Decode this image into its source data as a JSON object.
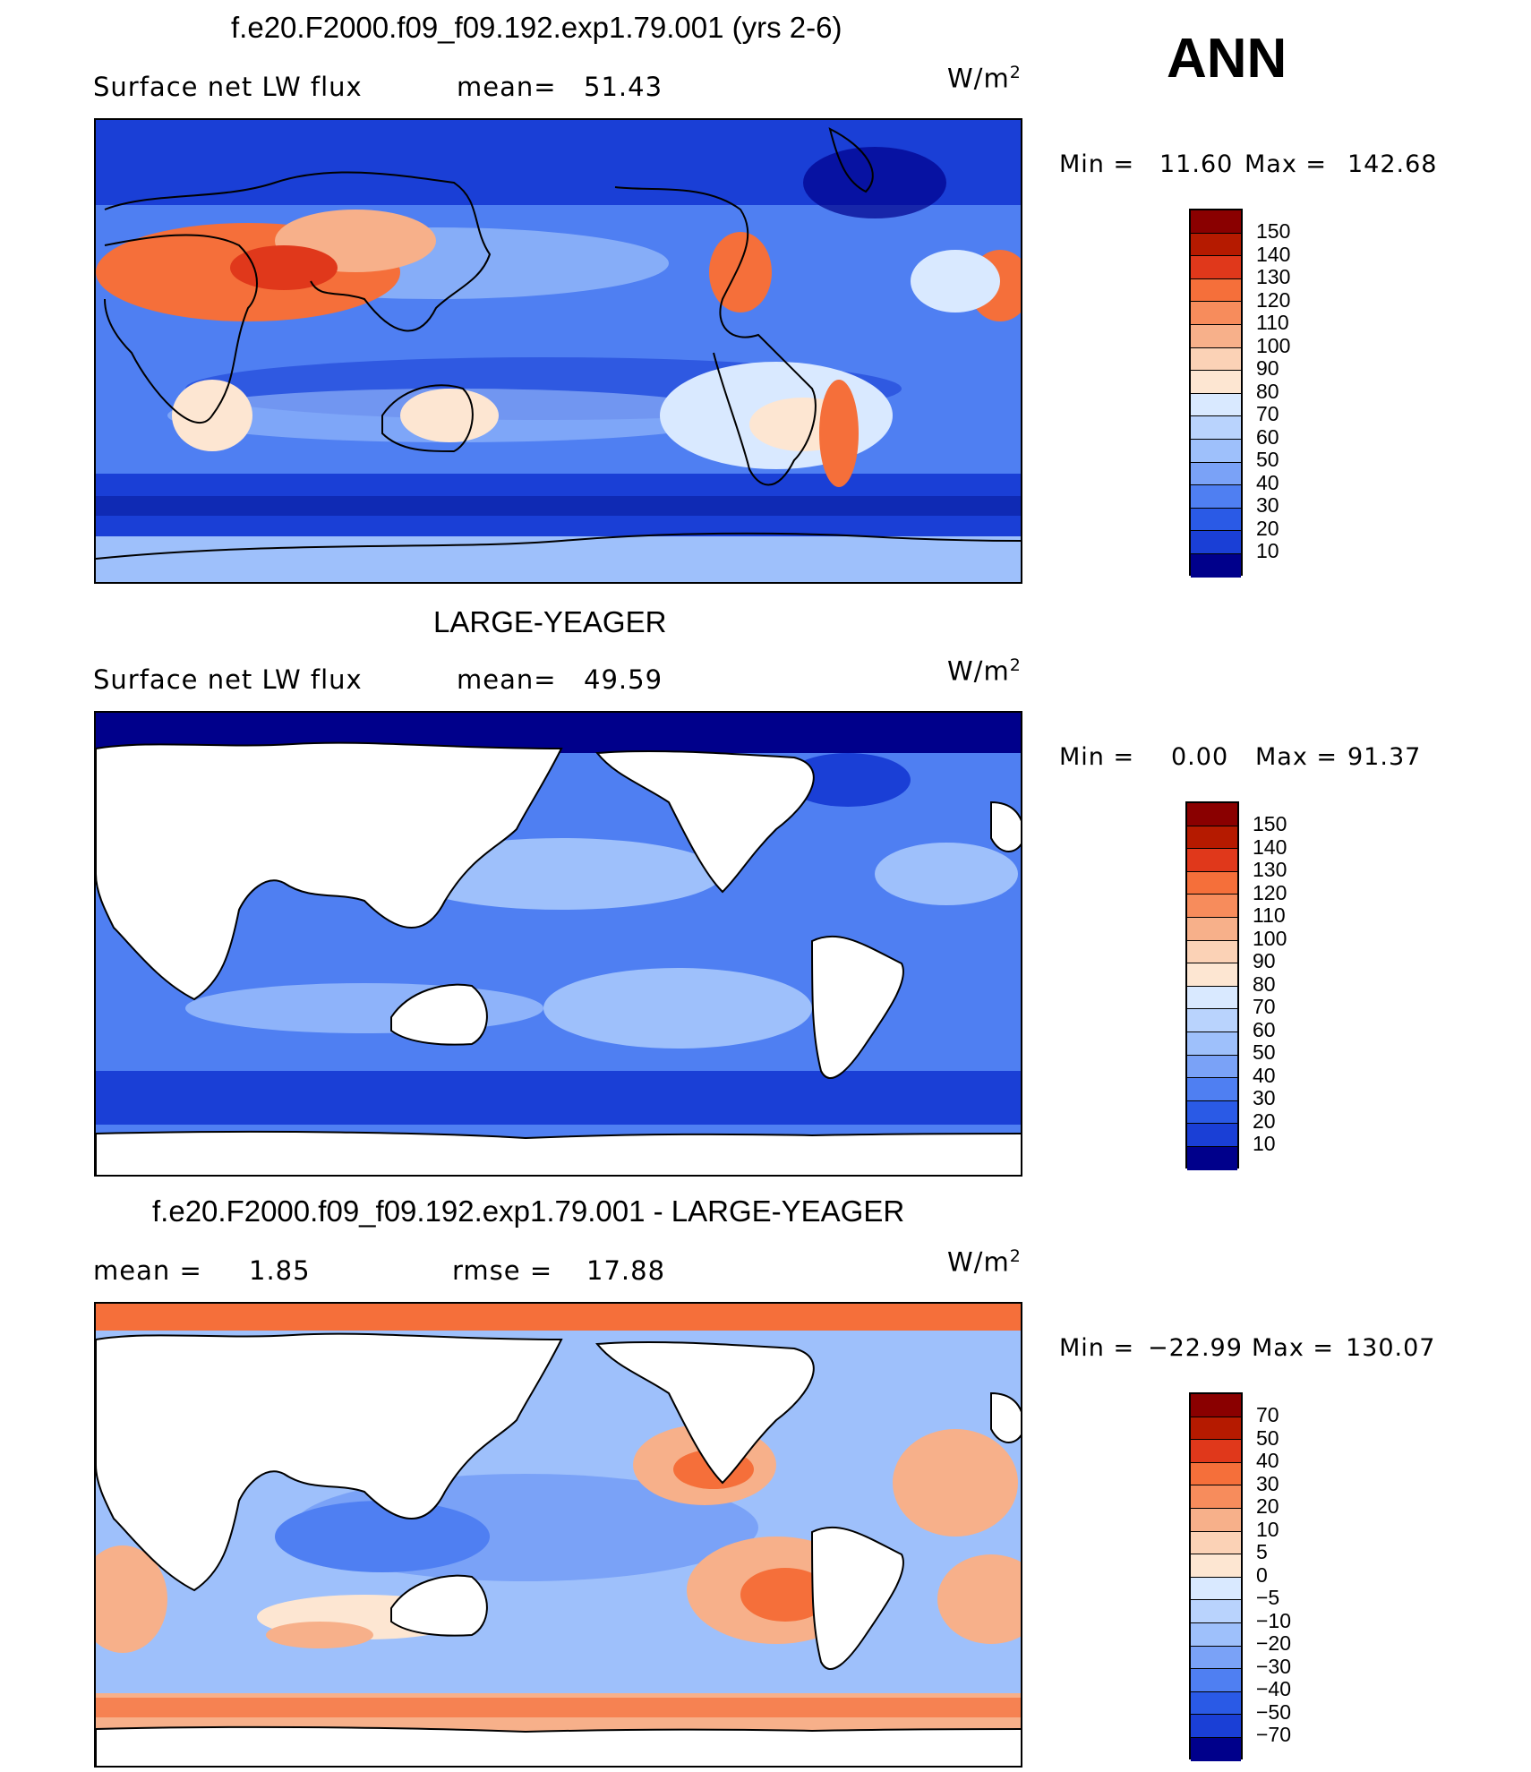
{
  "season": "ANN",
  "colors": {
    "deep_blue": "#00008b",
    "blue": "#1a3fd6",
    "mid_blue": "#4f7ff2",
    "light_blue": "#9ec0fb",
    "pale_blue": "#d9e9ff",
    "cream": "#fde6d2",
    "light_orange": "#f7b08a",
    "orange": "#f56f3a",
    "red_orange": "#e0381b",
    "dark_red": "#8a0000",
    "land": "#ffffff",
    "coast": "#000000"
  },
  "panels": [
    {
      "title": "f.e20.F2000.f09_f09.192.exp1.79.001 (yrs 2-6)",
      "left_label": "Surface net LW flux",
      "right_label": "mean=",
      "right_value": "51.43",
      "units": "W/m",
      "units_sup": "2",
      "min_label": "Min =",
      "min_value": "11.60",
      "max_label": "Max =",
      "max_value": "142.68",
      "colorbar_labels": [
        "150",
        "140",
        "130",
        "120",
        "110",
        "100",
        "90",
        "80",
        "70",
        "60",
        "50",
        "40",
        "30",
        "20",
        "10"
      ]
    },
    {
      "title": "LARGE-YEAGER",
      "left_label": "Surface net LW flux",
      "right_label": "mean=",
      "right_value": "49.59",
      "units": "W/m",
      "units_sup": "2",
      "min_label": "Min =",
      "min_value": "0.00",
      "max_label": "Max =",
      "max_value": "91.37",
      "colorbar_labels": [
        "150",
        "140",
        "130",
        "120",
        "110",
        "100",
        "90",
        "80",
        "70",
        "60",
        "50",
        "40",
        "30",
        "20",
        "10"
      ]
    },
    {
      "title": "f.e20.F2000.f09_f09.192.exp1.79.001 - LARGE-YEAGER",
      "left_label": "mean =",
      "left_value": "1.85",
      "right_label": "rmse =",
      "right_value": "17.88",
      "units": "W/m",
      "units_sup": "2",
      "min_label": "Min =",
      "min_value": "−22.99",
      "max_label": "Max =",
      "max_value": "130.07",
      "colorbar_labels": [
        "70",
        "50",
        "40",
        "30",
        "20",
        "10",
        "5",
        "0",
        "−5",
        "−10",
        "−20",
        "−30",
        "−40",
        "−50",
        "−70"
      ]
    }
  ]
}
